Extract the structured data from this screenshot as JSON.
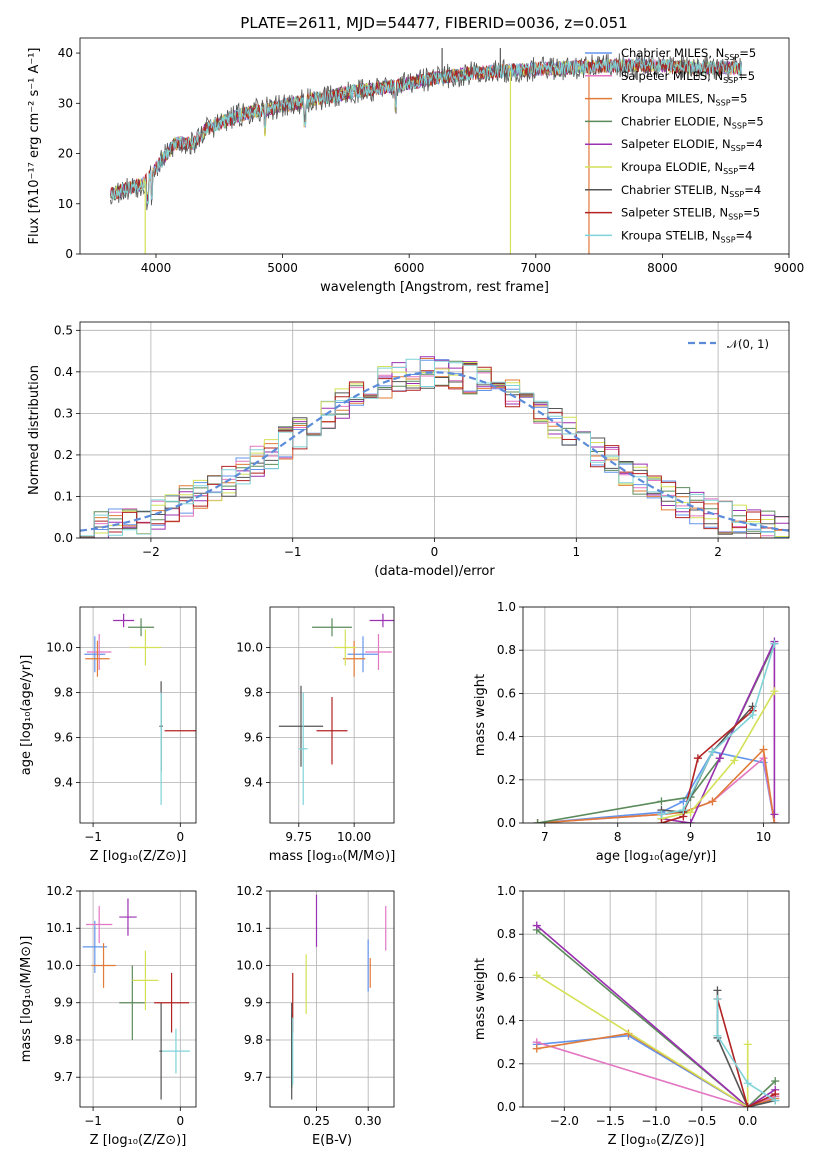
{
  "title": "PLATE=2611, MJD=54477, FIBERID=0036, z=0.051",
  "colors": {
    "chabrier_miles": "#6495ed",
    "salpeter_miles": "#e377c2",
    "kroupa_miles": "#e07b39",
    "chabrier_elodie": "#5b8a5b",
    "salpeter_elodie": "#9b30b0",
    "kroupa_elodie": "#d4e157",
    "chabrier_stelib": "#555555",
    "salpeter_stelib": "#b22222",
    "kroupa_stelib": "#7fd3d8"
  },
  "legend_series": [
    {
      "name": "Chabrier MILES, N",
      "sub": "SSP",
      "suffix": "=5",
      "color_key": "chabrier_miles"
    },
    {
      "name": "Salpeter MILES, N",
      "sub": "SSP",
      "suffix": "=5",
      "color_key": "salpeter_miles"
    },
    {
      "name": "Kroupa MILES, N",
      "sub": "SSP",
      "suffix": "=5",
      "color_key": "kroupa_miles"
    },
    {
      "name": "Chabrier ELODIE, N",
      "sub": "SSP",
      "suffix": "=5",
      "color_key": "chabrier_elodie"
    },
    {
      "name": "Salpeter ELODIE, N",
      "sub": "SSP",
      "suffix": "=4",
      "color_key": "salpeter_elodie"
    },
    {
      "name": "Kroupa ELODIE, N",
      "sub": "SSP",
      "suffix": "=4",
      "color_key": "kroupa_elodie"
    },
    {
      "name": "Chabrier STELIB, N",
      "sub": "SSP",
      "suffix": "=4",
      "color_key": "chabrier_stelib"
    },
    {
      "name": "Salpeter STELIB, N",
      "sub": "SSP",
      "suffix": "=5",
      "color_key": "salpeter_stelib"
    },
    {
      "name": "Kroupa STELIB, N",
      "sub": "SSP",
      "suffix": "=4",
      "color_key": "kroupa_stelib"
    }
  ],
  "chart_data": [
    {
      "id": "spectrum",
      "type": "line",
      "xlabel": "wavelength [Angstrom, rest frame]",
      "ylabel": "Flux [fλ10⁻¹⁷ erg cm⁻² s⁻¹ A⁻¹]",
      "xlim": [
        3400,
        9000
      ],
      "ylim": [
        0,
        43
      ],
      "xticks": [
        4000,
        5000,
        6000,
        7000,
        8000,
        9000
      ],
      "yticks": [
        0,
        10,
        20,
        30,
        40
      ],
      "xrange": [
        3640,
        8630
      ],
      "continuum": [
        [
          3640,
          12
        ],
        [
          3900,
          14
        ],
        [
          4000,
          17
        ],
        [
          4150,
          22
        ],
        [
          4300,
          22
        ],
        [
          4400,
          25
        ],
        [
          4700,
          28
        ],
        [
          5000,
          29.5
        ],
        [
          5300,
          31
        ],
        [
          5600,
          32.5
        ],
        [
          5900,
          33.5
        ],
        [
          6200,
          35
        ],
        [
          6500,
          36
        ],
        [
          6800,
          36.5
        ],
        [
          7200,
          37
        ],
        [
          7600,
          37.5
        ],
        [
          8000,
          37.5
        ],
        [
          8300,
          37
        ],
        [
          8630,
          37
        ]
      ],
      "spikes": [
        {
          "x": 3915,
          "y": 0
        },
        {
          "x": 6800,
          "y": 0
        },
        {
          "x": 7420,
          "y": 0
        },
        {
          "x": 6720,
          "y": 41
        },
        {
          "x": 6260,
          "y": 41
        }
      ]
    },
    {
      "id": "residuals",
      "type": "step",
      "xlabel": "(data-model)/error",
      "ylabel": "Normed distribution",
      "xlim": [
        -2.5,
        2.5
      ],
      "ylim": [
        0,
        0.52
      ],
      "xticks": [
        -2,
        -1,
        0,
        1,
        2
      ],
      "yticks": [
        0.0,
        0.1,
        0.2,
        0.3,
        0.4,
        0.5
      ],
      "gaussian_label": "𝒩(0, 1)",
      "bin_width": 0.1
    },
    {
      "id": "age_vs_Z",
      "type": "errorbar",
      "xlabel": "Z [log₁₀(Z/Z⊙)]",
      "ylabel": "age  [log₁₀(age/yr)]",
      "xlim": [
        -1.15,
        0.18
      ],
      "ylim": [
        9.22,
        10.18
      ],
      "xticks": [
        -1,
        0
      ],
      "yticks": [
        9.4,
        9.6,
        9.8,
        10.0
      ],
      "points": [
        {
          "k": "chabrier_miles",
          "x": -0.98,
          "y": 9.97,
          "xe": 0.12,
          "ye": 0.08
        },
        {
          "k": "salpeter_miles",
          "x": -0.93,
          "y": 9.98,
          "xe": 0.14,
          "ye": 0.08
        },
        {
          "k": "kroupa_miles",
          "x": -0.95,
          "y": 9.95,
          "xe": 0.14,
          "ye": 0.08
        },
        {
          "k": "chabrier_elodie",
          "x": -0.45,
          "y": 10.09,
          "xe": 0.15,
          "ye": 0.04
        },
        {
          "k": "salpeter_elodie",
          "x": -0.65,
          "y": 10.12,
          "xe": 0.12,
          "ye": 0.03
        },
        {
          "k": "kroupa_elodie",
          "x": -0.4,
          "y": 10.0,
          "xe": 0.18,
          "ye": 0.08
        },
        {
          "k": "chabrier_stelib",
          "x": -0.22,
          "y": 9.65,
          "xe": 0.02,
          "ye": 0.2
        },
        {
          "k": "salpeter_stelib",
          "x": 0.02,
          "y": 9.63,
          "xe": 0.2,
          "ye": 0.0
        },
        {
          "k": "kroupa_stelib",
          "x": -0.22,
          "y": 9.55,
          "xe": 0.0,
          "ye": 0.25
        }
      ]
    },
    {
      "id": "age_vs_mass",
      "type": "errorbar",
      "xlabel": "mass [log₁₀(M/M⊙)]",
      "ylabel": "",
      "xlim": [
        9.62,
        10.18
      ],
      "ylim": [
        9.22,
        10.18
      ],
      "xticks": [
        9.75,
        10.0
      ],
      "yticks": [
        9.4,
        9.6,
        9.8,
        10.0
      ],
      "points": [
        {
          "k": "chabrier_miles",
          "x": 10.04,
          "y": 9.97,
          "xe": 0.07,
          "ye": 0.08
        },
        {
          "k": "salpeter_miles",
          "x": 10.11,
          "y": 9.98,
          "xe": 0.06,
          "ye": 0.08
        },
        {
          "k": "kroupa_miles",
          "x": 10.0,
          "y": 9.95,
          "xe": 0.05,
          "ye": 0.08
        },
        {
          "k": "chabrier_elodie",
          "x": 9.9,
          "y": 10.09,
          "xe": 0.09,
          "ye": 0.04
        },
        {
          "k": "salpeter_elodie",
          "x": 10.13,
          "y": 10.12,
          "xe": 0.06,
          "ye": 0.03
        },
        {
          "k": "kroupa_elodie",
          "x": 9.96,
          "y": 10.0,
          "xe": 0.05,
          "ye": 0.08
        },
        {
          "k": "chabrier_stelib",
          "x": 9.76,
          "y": 9.65,
          "xe": 0.1,
          "ye": 0.18
        },
        {
          "k": "salpeter_stelib",
          "x": 9.9,
          "y": 9.63,
          "xe": 0.07,
          "ye": 0.15
        },
        {
          "k": "kroupa_stelib",
          "x": 9.77,
          "y": 9.55,
          "xe": 0.02,
          "ye": 0.25
        }
      ]
    },
    {
      "id": "weight_vs_age",
      "type": "line",
      "xlabel": "age  [log₁₀(age/yr)]",
      "ylabel": "mass weight",
      "xlim": [
        6.7,
        10.35
      ],
      "ylim": [
        0,
        1.0
      ],
      "xticks": [
        7,
        8,
        9,
        10
      ],
      "yticks": [
        0.0,
        0.2,
        0.4,
        0.6,
        0.8,
        1.0
      ],
      "series": [
        {
          "k": "chabrier_miles",
          "x": [
            6.9,
            8.6,
            8.9,
            9.3,
            10.0,
            10.15
          ],
          "y": [
            0.0,
            0.05,
            0.1,
            0.33,
            0.28,
            0.0
          ]
        },
        {
          "k": "salpeter_miles",
          "x": [
            6.9,
            8.6,
            8.9,
            9.3,
            10.0,
            10.15
          ],
          "y": [
            0.0,
            0.04,
            0.05,
            0.1,
            0.3,
            0.0
          ]
        },
        {
          "k": "kroupa_miles",
          "x": [
            6.9,
            8.6,
            8.9,
            9.3,
            10.0,
            10.15
          ],
          "y": [
            0.0,
            0.04,
            0.05,
            0.1,
            0.34,
            0.0
          ]
        },
        {
          "k": "chabrier_elodie",
          "x": [
            6.9,
            8.6,
            9.0,
            9.4,
            10.15
          ],
          "y": [
            0.0,
            0.1,
            0.12,
            0.3,
            0.83
          ]
        },
        {
          "k": "salpeter_elodie",
          "x": [
            8.6,
            9.0,
            9.4,
            10.15,
            10.15
          ],
          "y": [
            0.02,
            0.0,
            0.3,
            0.84,
            0.04
          ]
        },
        {
          "k": "kroupa_elodie",
          "x": [
            8.6,
            9.0,
            9.6,
            10.15
          ],
          "y": [
            0.02,
            0.05,
            0.29,
            0.61
          ]
        },
        {
          "k": "chabrier_stelib",
          "x": [
            8.6,
            8.9,
            9.3,
            9.85
          ],
          "y": [
            0.06,
            0.05,
            0.33,
            0.54
          ]
        },
        {
          "k": "salpeter_stelib",
          "x": [
            8.6,
            8.9,
            9.1,
            9.85
          ],
          "y": [
            0.0,
            0.03,
            0.3,
            0.52
          ]
        },
        {
          "k": "kroupa_stelib",
          "x": [
            8.6,
            8.9,
            9.3,
            9.85,
            10.15
          ],
          "y": [
            0.04,
            0.06,
            0.33,
            0.5,
            0.83
          ]
        }
      ]
    },
    {
      "id": "mass_vs_Z",
      "type": "errorbar",
      "xlabel": "Z [log₁₀(Z/Z⊙)]",
      "ylabel": "mass [log₁₀(M/M⊙)]",
      "xlim": [
        -1.15,
        0.18
      ],
      "ylim": [
        9.62,
        10.2
      ],
      "xticks": [
        -1,
        0
      ],
      "yticks": [
        9.7,
        9.8,
        9.9,
        10.0,
        10.1,
        10.2
      ],
      "points": [
        {
          "k": "chabrier_miles",
          "x": -0.98,
          "y": 10.05,
          "xe": 0.14,
          "ye": 0.07
        },
        {
          "k": "salpeter_miles",
          "x": -0.93,
          "y": 10.11,
          "xe": 0.15,
          "ye": 0.05
        },
        {
          "k": "kroupa_miles",
          "x": -0.88,
          "y": 10.0,
          "xe": 0.14,
          "ye": 0.06
        },
        {
          "k": "chabrier_elodie",
          "x": -0.55,
          "y": 9.9,
          "xe": 0.15,
          "ye": 0.1
        },
        {
          "k": "salpeter_elodie",
          "x": -0.6,
          "y": 10.13,
          "xe": 0.1,
          "ye": 0.05
        },
        {
          "k": "kroupa_elodie",
          "x": -0.4,
          "y": 9.96,
          "xe": 0.15,
          "ye": 0.08
        },
        {
          "k": "chabrier_stelib",
          "x": -0.22,
          "y": 9.77,
          "xe": 0.02,
          "ye": 0.13
        },
        {
          "k": "salpeter_stelib",
          "x": -0.1,
          "y": 9.9,
          "xe": 0.2,
          "ye": 0.08
        },
        {
          "k": "kroupa_stelib",
          "x": -0.05,
          "y": 9.77,
          "xe": 0.16,
          "ye": 0.06
        }
      ]
    },
    {
      "id": "mass_vs_ebv",
      "type": "errorbar",
      "xlabel": "E(B-V)",
      "ylabel": "",
      "xlim": [
        0.205,
        0.325
      ],
      "ylim": [
        9.62,
        10.2
      ],
      "xticks": [
        0.25,
        0.3
      ],
      "yticks": [
        9.7,
        9.8,
        9.9,
        10.0,
        10.1,
        10.2
      ],
      "points": [
        {
          "k": "chabrier_miles",
          "x": 0.3,
          "y": 10.0,
          "xe": 0.0,
          "ye": 0.07
        },
        {
          "k": "salpeter_miles",
          "x": 0.317,
          "y": 10.1,
          "xe": 0.0,
          "ye": 0.06
        },
        {
          "k": "kroupa_miles",
          "x": 0.302,
          "y": 9.98,
          "xe": 0.0,
          "ye": 0.04
        },
        {
          "k": "chabrier_elodie",
          "x": 0.226,
          "y": 9.77,
          "xe": 0.0,
          "ye": 0.1
        },
        {
          "k": "salpeter_elodie",
          "x": 0.25,
          "y": 10.12,
          "xe": 0.0,
          "ye": 0.07
        },
        {
          "k": "kroupa_elodie",
          "x": 0.24,
          "y": 9.95,
          "xe": 0.0,
          "ye": 0.08
        },
        {
          "k": "chabrier_stelib",
          "x": 0.226,
          "y": 9.77,
          "xe": 0.0,
          "ye": 0.13
        },
        {
          "k": "salpeter_stelib",
          "x": 0.227,
          "y": 9.9,
          "xe": 0.0,
          "ye": 0.08
        },
        {
          "k": "kroupa_stelib",
          "x": 0.227,
          "y": 9.77,
          "xe": 0.0,
          "ye": 0.09
        }
      ]
    },
    {
      "id": "weight_vs_Z",
      "type": "line",
      "xlabel": "Z [log₁₀(Z/Z⊙)]",
      "ylabel": "mass weight",
      "xlim": [
        -2.45,
        0.45
      ],
      "ylim": [
        0,
        1.0
      ],
      "xticks": [
        -2.0,
        -1.5,
        -1.0,
        -0.5,
        0.0
      ],
      "yticks": [
        0.0,
        0.2,
        0.4,
        0.6,
        0.8,
        1.0
      ],
      "series": [
        {
          "k": "chabrier_miles",
          "x": [
            -2.3,
            -1.3,
            0.0,
            0.3
          ],
          "y": [
            0.29,
            0.33,
            0.0,
            0.05
          ]
        },
        {
          "k": "salpeter_miles",
          "x": [
            -2.3,
            0.0,
            0.3
          ],
          "y": [
            0.3,
            0.0,
            0.05
          ]
        },
        {
          "k": "kroupa_miles",
          "x": [
            -2.3,
            -1.3,
            0.0,
            0.3
          ],
          "y": [
            0.27,
            0.34,
            0.0,
            0.04
          ]
        },
        {
          "k": "chabrier_elodie",
          "x": [
            -2.3,
            0.0,
            0.3
          ],
          "y": [
            0.82,
            0.0,
            0.12
          ]
        },
        {
          "k": "salpeter_elodie",
          "x": [
            -2.3,
            0.0,
            0.3
          ],
          "y": [
            0.84,
            0.0,
            0.08
          ]
        },
        {
          "k": "kroupa_elodie",
          "x": [
            -2.3,
            0.0,
            0.0
          ],
          "y": [
            0.61,
            0.0,
            0.29
          ]
        },
        {
          "k": "chabrier_stelib",
          "x": [
            -0.33,
            -0.33,
            0.0,
            0.3
          ],
          "y": [
            0.54,
            0.32,
            0.0,
            0.03
          ]
        },
        {
          "k": "salpeter_stelib",
          "x": [
            -0.33,
            0.0,
            0.3
          ],
          "y": [
            0.5,
            0.0,
            0.06
          ]
        },
        {
          "k": "kroupa_stelib",
          "x": [
            -0.33,
            -0.33,
            0.0,
            0.3
          ],
          "y": [
            0.5,
            0.33,
            0.11,
            0.03
          ]
        }
      ]
    }
  ]
}
